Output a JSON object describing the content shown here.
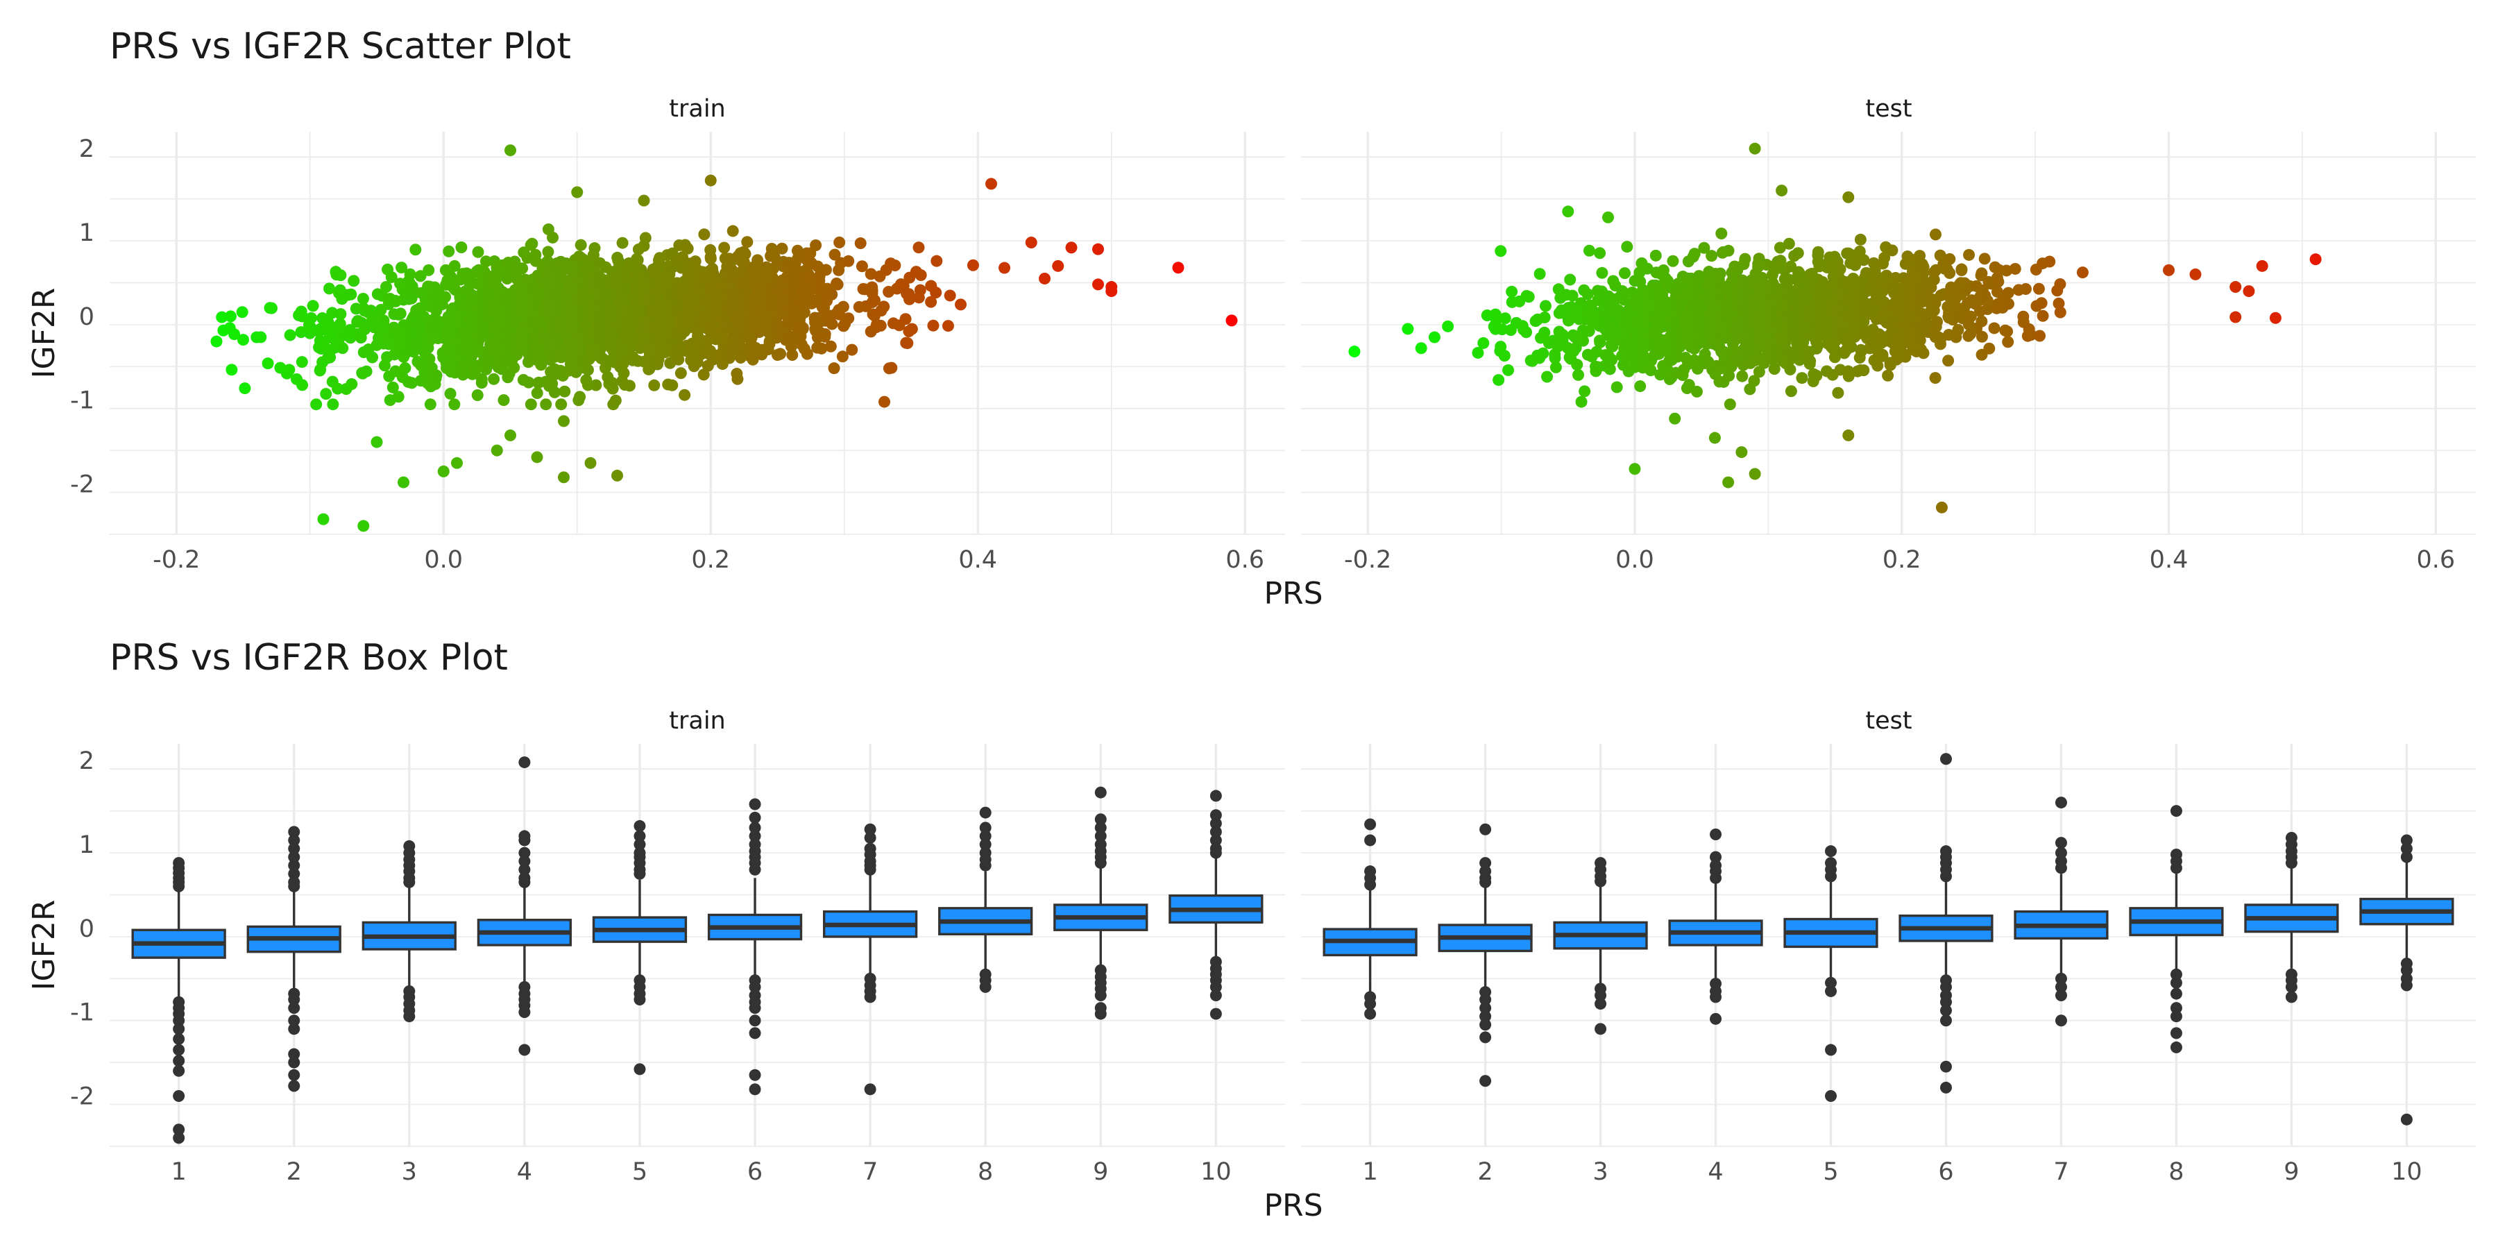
{
  "chart_data": [
    {
      "type": "scatter",
      "title": "PRS vs IGF2R Scatter Plot",
      "xlabel": "PRS",
      "ylabel": "IGF2R",
      "xlim": [
        -0.25,
        0.63
      ],
      "ylim": [
        -2.6,
        2.2
      ],
      "x_ticks": [
        -0.2,
        0.0,
        0.2,
        0.4,
        0.6
      ],
      "x_tick_labels": [
        "-0.2",
        "0.0",
        "0.2",
        "0.4",
        "0.6"
      ],
      "y_ticks": [
        -2,
        -1,
        0,
        1,
        2
      ],
      "y_tick_labels": [
        "-2",
        "-1",
        "0",
        "1",
        "2"
      ],
      "grid": true,
      "color_scale": {
        "low": "#00ff00",
        "high": "#ff0000",
        "domain": [
          -0.22,
          0.59
        ],
        "encodes": "PRS"
      },
      "panels": [
        {
          "strip": "train",
          "cloud": {
            "x_mean": 0.12,
            "x_sd": 0.095,
            "slope": 1.05,
            "resid_sd": 0.33,
            "n": 2600,
            "x_range": [
              -0.17,
              0.42
            ]
          },
          "outliers": [
            [
              0.05,
              1.98
            ],
            [
              -0.06,
              -2.5
            ],
            [
              -0.09,
              -2.42
            ],
            [
              0.13,
              -1.9
            ],
            [
              0.09,
              -1.92
            ],
            [
              0.11,
              -1.75
            ],
            [
              0.04,
              -1.6
            ],
            [
              -0.03,
              -1.98
            ],
            [
              -0.05,
              -1.5
            ],
            [
              0.0,
              -1.85
            ],
            [
              0.01,
              -1.75
            ],
            [
              0.05,
              -1.42
            ],
            [
              0.09,
              -1.25
            ],
            [
              -0.04,
              -1.0
            ],
            [
              0.07,
              -1.68
            ],
            [
              0.2,
              1.62
            ],
            [
              0.1,
              1.48
            ],
            [
              0.15,
              1.38
            ],
            [
              0.41,
              1.58
            ],
            [
              0.33,
              -1.02
            ],
            [
              0.47,
              0.82
            ],
            [
              0.49,
              0.8
            ],
            [
              0.44,
              0.88
            ],
            [
              0.5,
              0.35
            ],
            [
              0.5,
              0.3
            ],
            [
              0.49,
              0.38
            ],
            [
              0.45,
              0.45
            ],
            [
              0.55,
              0.58
            ],
            [
              0.59,
              -0.05
            ],
            [
              0.46,
              0.6
            ],
            [
              -0.15,
              -0.28
            ],
            [
              -0.16,
              -0.14
            ],
            [
              -0.17,
              -0.3
            ],
            [
              -0.14,
              -0.25
            ],
            [
              -0.13,
              0.1
            ],
            [
              -0.11,
              -0.75
            ]
          ]
        },
        {
          "strip": "test",
          "cloud": {
            "x_mean": 0.1,
            "x_sd": 0.085,
            "slope": 1.05,
            "resid_sd": 0.31,
            "n": 1700,
            "x_range": [
              -0.12,
              0.4
            ]
          },
          "outliers": [
            [
              0.09,
              2.0
            ],
            [
              0.23,
              -2.28
            ],
            [
              0.07,
              -1.98
            ],
            [
              0.09,
              -1.88
            ],
            [
              0.0,
              -1.82
            ],
            [
              0.06,
              -1.45
            ],
            [
              0.08,
              -1.62
            ],
            [
              0.16,
              -1.42
            ],
            [
              0.03,
              -1.22
            ],
            [
              0.11,
              1.5
            ],
            [
              0.16,
              1.42
            ],
            [
              -0.05,
              1.25
            ],
            [
              -0.02,
              1.18
            ],
            [
              0.51,
              0.68
            ],
            [
              0.47,
              0.6
            ],
            [
              0.45,
              0.35
            ],
            [
              0.46,
              0.3
            ],
            [
              0.48,
              -0.02
            ],
            [
              0.45,
              -0.01
            ],
            [
              0.42,
              0.5
            ],
            [
              0.4,
              0.55
            ],
            [
              -0.21,
              -0.42
            ],
            [
              -0.17,
              -0.15
            ],
            [
              -0.16,
              -0.38
            ],
            [
              -0.15,
              -0.25
            ],
            [
              -0.14,
              -0.12
            ],
            [
              -0.04,
              -1.02
            ]
          ]
        }
      ]
    },
    {
      "type": "box",
      "title": "PRS vs IGF2R Box Plot",
      "xlabel": "PRS",
      "ylabel": "IGF2R",
      "ylim": [
        -2.6,
        2.2
      ],
      "categories": [
        "1",
        "2",
        "3",
        "4",
        "5",
        "6",
        "7",
        "8",
        "9",
        "10"
      ],
      "y_ticks": [
        -2,
        -1,
        0,
        1,
        2
      ],
      "y_tick_labels": [
        "-2",
        "-1",
        "0",
        "1",
        "2"
      ],
      "grid": true,
      "box_color": "#1e90ff",
      "panels": [
        {
          "strip": "train",
          "boxes": [
            {
              "q1": -0.35,
              "median": -0.18,
              "q3": -0.02,
              "lo": -0.82,
              "hi": 0.47,
              "outliers": [
                0.78,
                0.72,
                0.66,
                0.6,
                0.55,
                0.5,
                -0.88,
                -0.95,
                -1.02,
                -1.1,
                -1.2,
                -1.32,
                -1.45,
                -1.58,
                -1.7,
                -2.0,
                -2.4,
                -2.5
              ]
            },
            {
              "q1": -0.28,
              "median": -0.12,
              "q3": 0.02,
              "lo": -0.72,
              "hi": 0.47,
              "outliers": [
                1.15,
                1.05,
                0.95,
                0.85,
                0.75,
                0.65,
                0.55,
                0.5,
                -0.78,
                -0.85,
                -0.95,
                -1.1,
                -1.2,
                -1.5,
                -1.6,
                -1.75,
                -1.88
              ]
            },
            {
              "q1": -0.25,
              "median": -0.1,
              "q3": 0.07,
              "lo": -0.7,
              "hi": 0.5,
              "outliers": [
                0.98,
                0.9,
                0.82,
                0.75,
                0.68,
                0.6,
                0.55,
                -0.75,
                -0.82,
                -0.9,
                -0.98,
                -1.05
              ]
            },
            {
              "q1": -0.2,
              "median": -0.05,
              "q3": 0.1,
              "lo": -0.65,
              "hi": 0.52,
              "outliers": [
                1.98,
                1.1,
                1.05,
                0.9,
                0.8,
                0.7,
                0.6,
                0.55,
                -0.7,
                -0.78,
                -0.85,
                -0.92,
                -1.0,
                -1.45
              ]
            },
            {
              "q1": -0.16,
              "median": -0.02,
              "q3": 0.13,
              "lo": -0.6,
              "hi": 0.58,
              "outliers": [
                1.22,
                1.1,
                1.0,
                0.9,
                0.85,
                0.78,
                0.7,
                0.65,
                -0.62,
                -0.7,
                -0.78,
                -0.85,
                -1.68
              ]
            },
            {
              "q1": -0.13,
              "median": 0.01,
              "q3": 0.16,
              "lo": -0.58,
              "hi": 0.6,
              "outliers": [
                1.48,
                1.32,
                1.2,
                1.1,
                1.0,
                0.92,
                0.85,
                0.78,
                0.7,
                -0.62,
                -0.7,
                -0.8,
                -0.88,
                -0.95,
                -1.1,
                -1.25,
                -1.75,
                -1.92
              ]
            },
            {
              "q1": -0.1,
              "median": 0.04,
              "q3": 0.2,
              "lo": -0.55,
              "hi": 0.65,
              "outliers": [
                1.18,
                1.08,
                0.95,
                0.88,
                0.8,
                0.75,
                0.7,
                -0.6,
                -0.68,
                -0.75,
                -0.82,
                -1.92
              ]
            },
            {
              "q1": -0.07,
              "median": 0.08,
              "q3": 0.24,
              "lo": -0.52,
              "hi": 0.68,
              "outliers": [
                1.38,
                1.2,
                1.1,
                1.0,
                0.9,
                0.82,
                0.75,
                -0.55,
                -0.62,
                -0.7
              ]
            },
            {
              "q1": -0.02,
              "median": 0.13,
              "q3": 0.28,
              "lo": -0.45,
              "hi": 0.72,
              "outliers": [
                1.62,
                1.3,
                1.2,
                1.1,
                1.0,
                0.92,
                0.85,
                0.78,
                -0.5,
                -0.58,
                -0.65,
                -0.72,
                -0.8,
                -0.95,
                -1.02
              ]
            },
            {
              "q1": 0.07,
              "median": 0.22,
              "q3": 0.39,
              "lo": -0.35,
              "hi": 0.84,
              "outliers": [
                1.58,
                1.35,
                1.25,
                1.15,
                1.05,
                0.95,
                0.9,
                -0.4,
                -0.48,
                -0.55,
                -0.62,
                -0.7,
                -0.8,
                -1.02
              ]
            }
          ]
        },
        {
          "strip": "test",
          "boxes": [
            {
              "q1": -0.32,
              "median": -0.15,
              "q3": -0.01,
              "lo": -0.78,
              "hi": 0.46,
              "outliers": [
                1.24,
                1.05,
                0.68,
                0.6,
                0.52,
                -0.82,
                -0.9,
                -1.02
              ]
            },
            {
              "q1": -0.27,
              "median": -0.11,
              "q3": 0.04,
              "lo": -0.72,
              "hi": 0.5,
              "outliers": [
                1.18,
                0.78,
                0.68,
                0.6,
                0.55,
                -0.76,
                -0.85,
                -0.95,
                -1.05,
                -1.15,
                -1.3,
                -1.82
              ]
            },
            {
              "q1": -0.24,
              "median": -0.08,
              "q3": 0.07,
              "lo": -0.68,
              "hi": 0.52,
              "outliers": [
                0.78,
                0.7,
                0.62,
                0.56,
                -0.72,
                -0.8,
                -0.9,
                -1.2
              ]
            },
            {
              "q1": -0.2,
              "median": -0.05,
              "q3": 0.09,
              "lo": -0.62,
              "hi": 0.55,
              "outliers": [
                1.12,
                0.85,
                0.75,
                0.68,
                0.6,
                -0.66,
                -0.75,
                -0.82,
                -1.08
              ]
            },
            {
              "q1": -0.22,
              "median": -0.05,
              "q3": 0.11,
              "lo": -0.6,
              "hi": 0.56,
              "outliers": [
                0.92,
                0.78,
                0.7,
                0.62,
                -0.65,
                -0.75,
                -1.45,
                -2.0
              ]
            },
            {
              "q1": -0.15,
              "median": 0.0,
              "q3": 0.15,
              "lo": -0.58,
              "hi": 0.58,
              "outliers": [
                2.02,
                0.92,
                0.85,
                0.78,
                0.7,
                0.62,
                -0.62,
                -0.7,
                -0.8,
                -0.88,
                -0.98,
                -1.1,
                -1.65,
                -1.9
              ]
            },
            {
              "q1": -0.12,
              "median": 0.03,
              "q3": 0.2,
              "lo": -0.55,
              "hi": 0.65,
              "outliers": [
                1.5,
                1.02,
                0.9,
                0.8,
                0.72,
                -0.6,
                -0.7,
                -0.8,
                -1.1
              ]
            },
            {
              "q1": -0.08,
              "median": 0.08,
              "q3": 0.24,
              "lo": -0.52,
              "hi": 0.68,
              "outliers": [
                1.4,
                0.88,
                0.8,
                0.72,
                -0.55,
                -0.65,
                -0.78,
                -0.95,
                -1.05,
                -1.25,
                -1.42
              ]
            },
            {
              "q1": -0.04,
              "median": 0.12,
              "q3": 0.28,
              "lo": -0.48,
              "hi": 0.72,
              "outliers": [
                1.08,
                1.0,
                0.92,
                0.85,
                0.78,
                -0.55,
                -0.62,
                -0.7,
                -0.82
              ]
            },
            {
              "q1": 0.05,
              "median": 0.2,
              "q3": 0.35,
              "lo": -0.38,
              "hi": 0.8,
              "outliers": [
                1.05,
                0.95,
                0.85,
                -0.42,
                -0.5,
                -0.6,
                -0.68,
                -2.28
              ]
            }
          ]
        }
      ]
    }
  ]
}
